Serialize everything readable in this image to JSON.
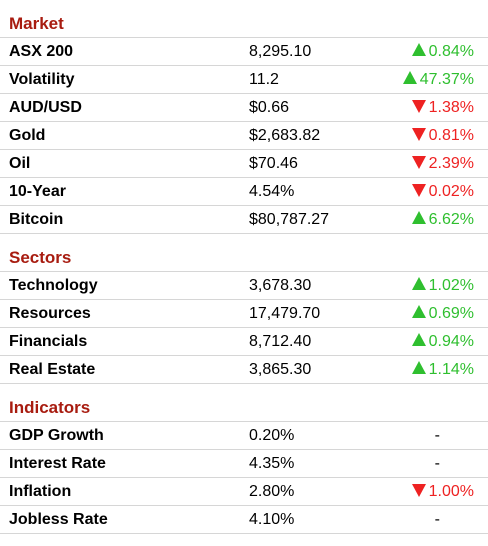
{
  "colors": {
    "section_title": "#a81c10",
    "up": "#2fbf2f",
    "down": "#ee2222",
    "divider": "#d6d6d6"
  },
  "sections": [
    {
      "title": "Market",
      "rows": [
        {
          "name": "ASX 200",
          "value": "8,295.10",
          "change": "0.84%",
          "direction": "up"
        },
        {
          "name": "Volatility",
          "value": "11.2",
          "change": "47.37%",
          "direction": "up"
        },
        {
          "name": "AUD/USD",
          "value": "$0.66",
          "change": "1.38%",
          "direction": "down"
        },
        {
          "name": "Gold",
          "value": "$2,683.82",
          "change": "0.81%",
          "direction": "down"
        },
        {
          "name": "Oil",
          "value": "$70.46",
          "change": "2.39%",
          "direction": "down"
        },
        {
          "name": "10-Year",
          "value": "4.54%",
          "change": "0.02%",
          "direction": "down"
        },
        {
          "name": "Bitcoin",
          "value": "$80,787.27",
          "change": "6.62%",
          "direction": "up"
        }
      ]
    },
    {
      "title": "Sectors",
      "rows": [
        {
          "name": "Technology",
          "value": "3,678.30",
          "change": "1.02%",
          "direction": "up"
        },
        {
          "name": "Resources",
          "value": "17,479.70",
          "change": "0.69%",
          "direction": "up"
        },
        {
          "name": "Financials",
          "value": "8,712.40",
          "change": "0.94%",
          "direction": "up"
        },
        {
          "name": "Real Estate",
          "value": "3,865.30",
          "change": "1.14%",
          "direction": "up"
        }
      ]
    },
    {
      "title": "Indicators",
      "rows": [
        {
          "name": "GDP Growth",
          "value": "0.20%",
          "change": "-",
          "direction": "flat"
        },
        {
          "name": "Interest Rate",
          "value": "4.35%",
          "change": "-",
          "direction": "flat"
        },
        {
          "name": "Inflation",
          "value": "2.80%",
          "change": "1.00%",
          "direction": "down"
        },
        {
          "name": "Jobless Rate",
          "value": "4.10%",
          "change": "-",
          "direction": "flat"
        }
      ]
    }
  ]
}
